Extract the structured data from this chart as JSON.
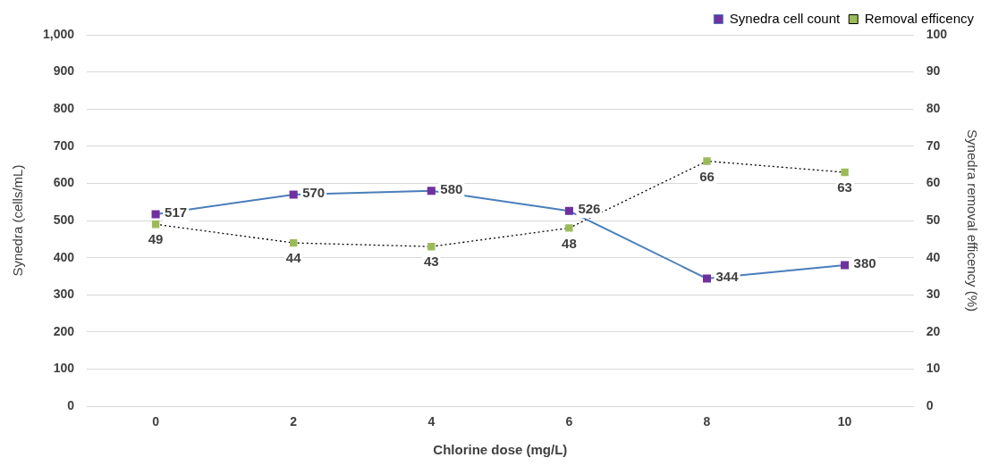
{
  "chart_data": {
    "type": "line",
    "xlabel": "Chlorine dose (mg/L)",
    "ylabel": "Synedra (cells/mL)",
    "y2label": "Synedra removal efficency (%)",
    "categories": [
      "0",
      "2",
      "4",
      "6",
      "8",
      "10"
    ],
    "series": [
      {
        "name": "Synedra cell count",
        "color": "#4a7ebb",
        "colors": [
          "#7030a0",
          "#7030a0",
          "#7030a0",
          "#7030a0",
          "#7030a0",
          "#7030a0"
        ],
        "line_style": "solid",
        "values": [
          517,
          570,
          580,
          526,
          344,
          380
        ]
      },
      {
        "name": "Removal efficency",
        "color": "#000000",
        "colors": [
          "#9bbb59",
          "#9bbb59",
          "#9bbb59",
          "#9bbb59",
          "#9bbb59",
          "#9bbb59"
        ],
        "line_style": "dotted",
        "axis": "y2",
        "values": [
          49,
          44,
          43,
          48,
          66,
          63
        ]
      }
    ],
    "ylim": [
      0,
      1000
    ],
    "yticks": [
      0,
      100,
      200,
      300,
      400,
      500,
      600,
      700,
      800,
      900,
      {
        "value": 1000,
        "label": "1,000"
      }
    ],
    "y2lim": [
      0,
      100
    ],
    "y2ticks": [
      0,
      10,
      20,
      30,
      40,
      50,
      60,
      70,
      80,
      90,
      100
    ],
    "grid": "y",
    "legend": "top right",
    "marker": "square",
    "data_labels": true
  }
}
